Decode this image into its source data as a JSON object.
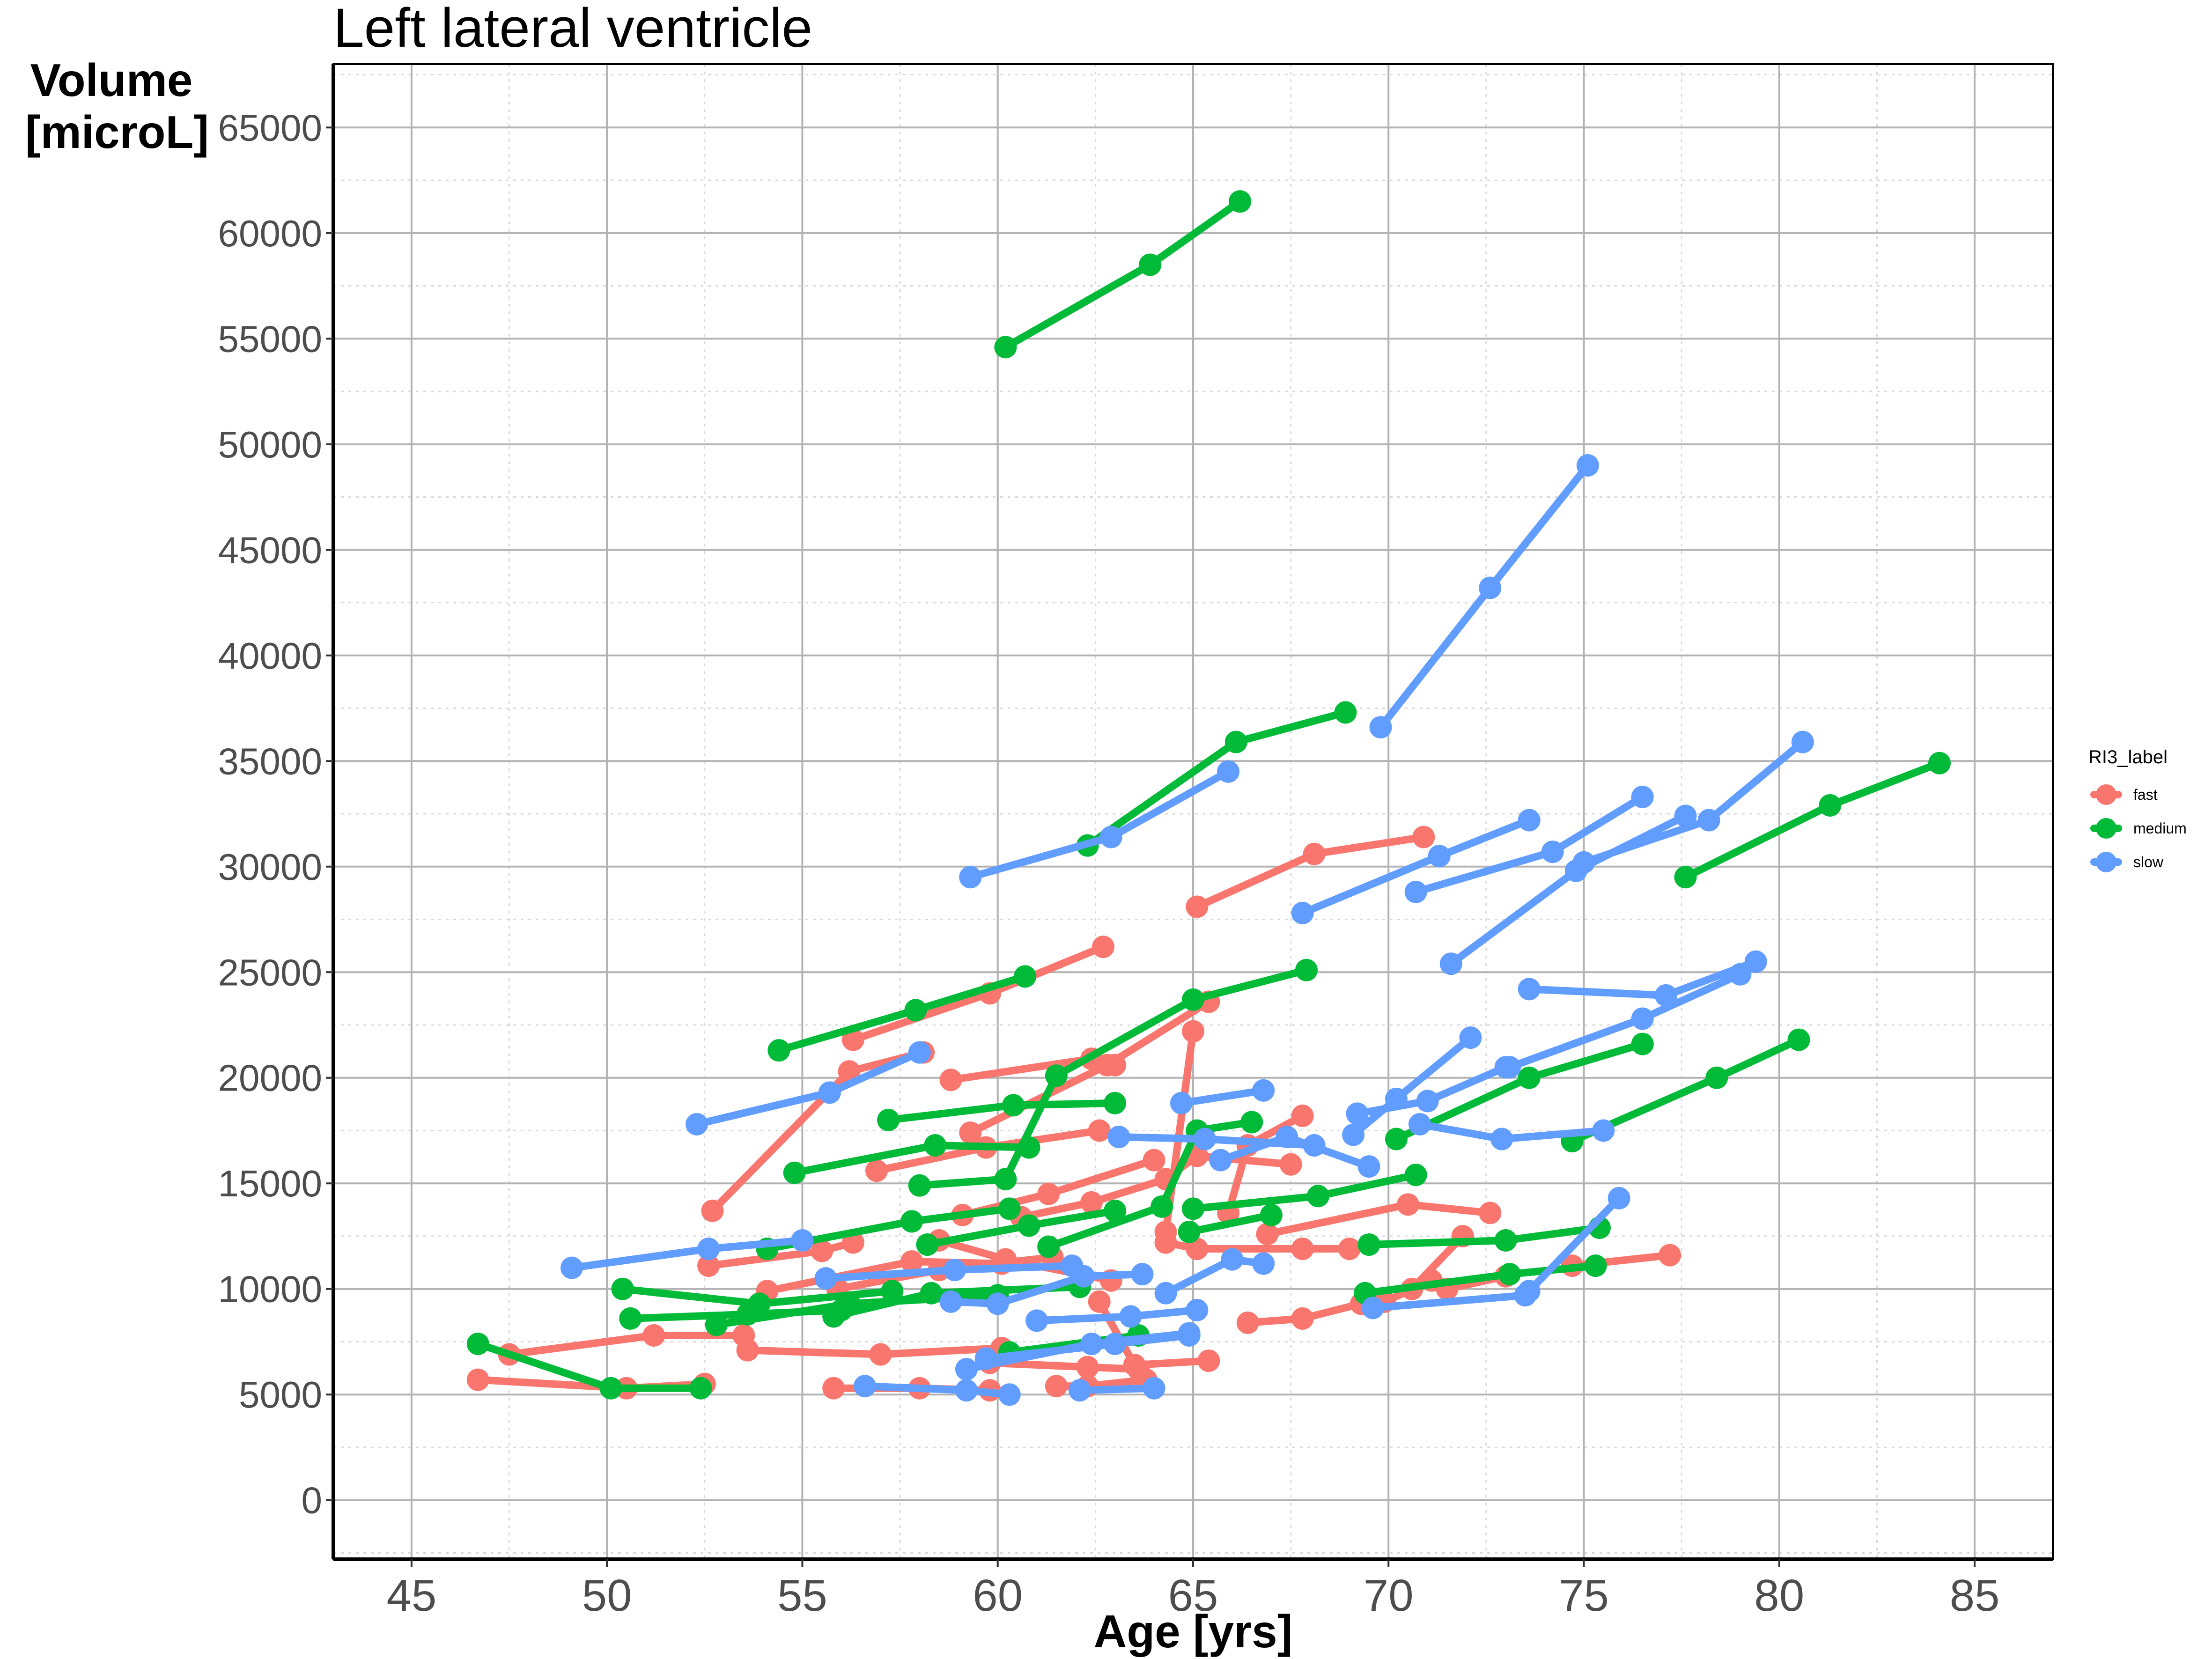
{
  "chart_data": {
    "type": "line",
    "title": "Left lateral ventricle",
    "ylabel_lines": [
      "Volume",
      "[microL]"
    ],
    "xlabel": "Age [yrs]",
    "xlim": [
      43,
      87
    ],
    "ylim": [
      -2800,
      68000
    ],
    "xticks": [
      45,
      50,
      55,
      60,
      65,
      70,
      75,
      80,
      85
    ],
    "yticks": [
      0,
      5000,
      10000,
      15000,
      20000,
      25000,
      30000,
      35000,
      40000,
      45000,
      50000,
      55000,
      60000,
      65000
    ],
    "grid": true,
    "legend": {
      "title": "RI3_label",
      "position": "right",
      "entries": [
        {
          "label": "fast",
          "color": "#F8766D"
        },
        {
          "label": "medium",
          "color": "#00BA38"
        },
        {
          "label": "slow",
          "color": "#619CFF"
        }
      ]
    },
    "series": [
      {
        "group": "fast",
        "points": [
          [
            46.7,
            5700
          ],
          [
            50.5,
            5300
          ],
          [
            52.5,
            5500
          ]
        ]
      },
      {
        "group": "fast",
        "points": [
          [
            47.5,
            6900
          ],
          [
            51.2,
            7800
          ],
          [
            53.5,
            7800
          ]
        ]
      },
      {
        "group": "fast",
        "points": [
          [
            52.6,
            11100
          ],
          [
            55.5,
            11800
          ],
          [
            56.3,
            12200
          ]
        ]
      },
      {
        "group": "fast",
        "points": [
          [
            52.7,
            13700
          ],
          [
            56.2,
            20300
          ],
          [
            58.1,
            21200
          ]
        ]
      },
      {
        "group": "fast",
        "points": [
          [
            53.6,
            7100
          ],
          [
            57.0,
            6900
          ],
          [
            60.1,
            7200
          ]
        ]
      },
      {
        "group": "fast",
        "points": [
          [
            54.1,
            9900
          ],
          [
            57.8,
            11300
          ],
          [
            60.1,
            11200
          ]
        ]
      },
      {
        "group": "fast",
        "points": [
          [
            55.8,
            5300
          ],
          [
            58.0,
            5300
          ],
          [
            59.8,
            5200
          ]
        ]
      },
      {
        "group": "fast",
        "points": [
          [
            55.9,
            10000
          ],
          [
            58.5,
            10900
          ],
          [
            61.4,
            11500
          ]
        ]
      },
      {
        "group": "fast",
        "points": [
          [
            56.3,
            21800
          ],
          [
            59.8,
            24000
          ],
          [
            62.7,
            26200
          ]
        ]
      },
      {
        "group": "fast",
        "points": [
          [
            56.9,
            15600
          ],
          [
            59.7,
            16700
          ],
          [
            62.6,
            17500
          ]
        ]
      },
      {
        "group": "fast",
        "points": [
          [
            58.5,
            12300
          ],
          [
            60.2,
            11400
          ],
          [
            62.9,
            10400
          ]
        ]
      },
      {
        "group": "fast",
        "points": [
          [
            58.8,
            19900
          ],
          [
            62.4,
            20900
          ],
          [
            63.0,
            20600
          ]
        ]
      },
      {
        "group": "fast",
        "points": [
          [
            59.1,
            13500
          ],
          [
            61.3,
            14500
          ],
          [
            64.0,
            16100
          ]
        ]
      },
      {
        "group": "fast",
        "points": [
          [
            59.3,
            17400
          ],
          [
            62.8,
            20600
          ],
          [
            65.4,
            23600
          ]
        ]
      },
      {
        "group": "fast",
        "points": [
          [
            59.8,
            6500
          ],
          [
            62.3,
            6300
          ],
          [
            63.6,
            6200
          ]
        ]
      },
      {
        "group": "fast",
        "points": [
          [
            60.6,
            13400
          ],
          [
            62.4,
            14100
          ],
          [
            64.3,
            15200
          ],
          [
            65.1,
            16300
          ],
          [
            67.5,
            15900
          ]
        ]
      },
      {
        "group": "fast",
        "points": [
          [
            61.5,
            5400
          ],
          [
            62.3,
            5400
          ],
          [
            63.8,
            5700
          ]
        ]
      },
      {
        "group": "fast",
        "points": [
          [
            62.6,
            9400
          ],
          [
            63.5,
            6400
          ],
          [
            65.4,
            6600
          ]
        ]
      },
      {
        "group": "fast",
        "points": [
          [
            64.3,
            12700
          ],
          [
            65.0,
            22200
          ]
        ]
      },
      {
        "group": "fast",
        "points": [
          [
            64.3,
            12200
          ],
          [
            65.1,
            11900
          ],
          [
            67.8,
            11900
          ],
          [
            69.0,
            11900
          ]
        ]
      },
      {
        "group": "fast",
        "points": [
          [
            65.1,
            28100
          ],
          [
            68.1,
            30600
          ],
          [
            70.9,
            31400
          ]
        ]
      },
      {
        "group": "fast",
        "points": [
          [
            65.9,
            13600
          ],
          [
            66.4,
            16800
          ],
          [
            67.8,
            18200
          ]
        ]
      },
      {
        "group": "fast",
        "points": [
          [
            66.4,
            8400
          ],
          [
            67.8,
            8600
          ],
          [
            69.3,
            9300
          ]
        ]
      },
      {
        "group": "fast",
        "points": [
          [
            66.9,
            12600
          ],
          [
            70.5,
            14000
          ],
          [
            72.6,
            13600
          ]
        ]
      },
      {
        "group": "fast",
        "points": [
          [
            69.9,
            9400
          ],
          [
            71.1,
            10400
          ],
          [
            71.5,
            10000
          ],
          [
            73.0,
            10600
          ]
        ]
      },
      {
        "group": "fast",
        "points": [
          [
            70.6,
            10000
          ],
          [
            71.9,
            12500
          ]
        ]
      },
      {
        "group": "fast",
        "points": [
          [
            74.7,
            11100
          ],
          [
            77.2,
            11600
          ]
        ]
      },
      {
        "group": "medium",
        "points": [
          [
            46.7,
            7400
          ],
          [
            50.1,
            5300
          ],
          [
            52.4,
            5300
          ]
        ]
      },
      {
        "group": "medium",
        "points": [
          [
            50.4,
            10000
          ],
          [
            53.9,
            9300
          ],
          [
            57.3,
            9900
          ]
        ]
      },
      {
        "group": "medium",
        "points": [
          [
            50.6,
            8600
          ],
          [
            53.6,
            8800
          ],
          [
            56.0,
            9000
          ]
        ]
      },
      {
        "group": "medium",
        "points": [
          [
            52.8,
            8300
          ],
          [
            56.2,
            9300
          ],
          [
            60.0,
            9700
          ]
        ]
      },
      {
        "group": "medium",
        "points": [
          [
            54.1,
            11900
          ],
          [
            57.8,
            13200
          ],
          [
            60.3,
            13800
          ]
        ]
      },
      {
        "group": "medium",
        "points": [
          [
            54.4,
            21300
          ],
          [
            57.9,
            23200
          ],
          [
            60.7,
            24800
          ]
        ]
      },
      {
        "group": "medium",
        "points": [
          [
            54.8,
            15500
          ],
          [
            58.4,
            16800
          ],
          [
            60.8,
            16700
          ]
        ]
      },
      {
        "group": "medium",
        "points": [
          [
            55.8,
            8700
          ],
          [
            58.3,
            9800
          ],
          [
            62.1,
            10100
          ]
        ]
      },
      {
        "group": "medium",
        "points": [
          [
            57.2,
            18000
          ],
          [
            60.4,
            18700
          ],
          [
            63.0,
            18800
          ]
        ]
      },
      {
        "group": "medium",
        "points": [
          [
            58.2,
            12100
          ],
          [
            60.8,
            13000
          ],
          [
            63.0,
            13700
          ]
        ]
      },
      {
        "group": "medium",
        "points": [
          [
            58.0,
            14900
          ],
          [
            60.2,
            15200
          ],
          [
            61.5,
            20100
          ],
          [
            65.0,
            23700
          ],
          [
            67.9,
            25100
          ]
        ]
      },
      {
        "group": "medium",
        "points": [
          [
            60.2,
            54600
          ],
          [
            63.9,
            58500
          ],
          [
            66.2,
            61500
          ]
        ]
      },
      {
        "group": "medium",
        "points": [
          [
            60.3,
            7000
          ],
          [
            63.6,
            7800
          ]
        ]
      },
      {
        "group": "medium",
        "points": [
          [
            61.3,
            12000
          ],
          [
            64.2,
            13900
          ],
          [
            65.1,
            17500
          ],
          [
            66.5,
            17900
          ]
        ]
      },
      {
        "group": "medium",
        "points": [
          [
            62.3,
            31000
          ],
          [
            66.1,
            35900
          ],
          [
            68.9,
            37300
          ]
        ]
      },
      {
        "group": "medium",
        "points": [
          [
            64.9,
            12700
          ],
          [
            67.0,
            13500
          ]
        ]
      },
      {
        "group": "medium",
        "points": [
          [
            65.0,
            13800
          ],
          [
            68.2,
            14400
          ],
          [
            70.7,
            15400
          ]
        ]
      },
      {
        "group": "medium",
        "points": [
          [
            69.4,
            9800
          ],
          [
            73.1,
            10700
          ],
          [
            75.3,
            11100
          ]
        ]
      },
      {
        "group": "medium",
        "points": [
          [
            69.5,
            12100
          ],
          [
            73.0,
            12300
          ],
          [
            75.4,
            12900
          ]
        ]
      },
      {
        "group": "medium",
        "points": [
          [
            70.2,
            17100
          ],
          [
            73.6,
            20000
          ],
          [
            76.5,
            21600
          ]
        ]
      },
      {
        "group": "medium",
        "points": [
          [
            74.7,
            17000
          ],
          [
            78.4,
            20000
          ],
          [
            80.5,
            21800
          ]
        ]
      },
      {
        "group": "medium",
        "points": [
          [
            77.6,
            29500
          ],
          [
            81.3,
            32900
          ],
          [
            84.1,
            34900
          ]
        ]
      },
      {
        "group": "slow",
        "points": [
          [
            49.1,
            11000
          ],
          [
            52.6,
            11900
          ],
          [
            55.0,
            12300
          ]
        ]
      },
      {
        "group": "slow",
        "points": [
          [
            52.3,
            17800
          ],
          [
            55.7,
            19300
          ],
          [
            58.0,
            21200
          ]
        ]
      },
      {
        "group": "slow",
        "points": [
          [
            55.6,
            10500
          ],
          [
            58.9,
            10900
          ],
          [
            61.9,
            11100
          ]
        ]
      },
      {
        "group": "slow",
        "points": [
          [
            56.6,
            5400
          ],
          [
            59.2,
            5200
          ],
          [
            60.3,
            5000
          ]
        ]
      },
      {
        "group": "slow",
        "points": [
          [
            58.8,
            9400
          ],
          [
            60.0,
            9300
          ],
          [
            62.2,
            10600
          ],
          [
            63.7,
            10700
          ]
        ]
      },
      {
        "group": "slow",
        "points": [
          [
            59.2,
            6200
          ],
          [
            62.4,
            7400
          ],
          [
            64.9,
            7900
          ]
        ]
      },
      {
        "group": "slow",
        "points": [
          [
            59.3,
            29500
          ],
          [
            62.9,
            31400
          ],
          [
            65.9,
            34500
          ]
        ]
      },
      {
        "group": "slow",
        "points": [
          [
            59.7,
            6700
          ],
          [
            63.0,
            7400
          ],
          [
            64.9,
            7800
          ]
        ]
      },
      {
        "group": "slow",
        "points": [
          [
            61.0,
            8500
          ],
          [
            63.4,
            8700
          ],
          [
            65.1,
            9000
          ]
        ]
      },
      {
        "group": "slow",
        "points": [
          [
            62.1,
            5200
          ],
          [
            64.0,
            5300
          ]
        ]
      },
      {
        "group": "slow",
        "points": [
          [
            63.1,
            17200
          ],
          [
            65.3,
            17100
          ],
          [
            68.1,
            16800
          ]
        ]
      },
      {
        "group": "slow",
        "points": [
          [
            64.3,
            9800
          ],
          [
            66.0,
            11400
          ],
          [
            66.8,
            11200
          ]
        ]
      },
      {
        "group": "slow",
        "points": [
          [
            64.7,
            18800
          ],
          [
            66.8,
            19400
          ]
        ]
      },
      {
        "group": "slow",
        "points": [
          [
            65.7,
            16100
          ],
          [
            67.4,
            17200
          ],
          [
            69.5,
            15800
          ]
        ]
      },
      {
        "group": "slow",
        "points": [
          [
            67.8,
            27800
          ],
          [
            71.3,
            30500
          ],
          [
            73.6,
            32200
          ]
        ]
      },
      {
        "group": "slow",
        "points": [
          [
            69.2,
            18300
          ],
          [
            71.0,
            18900
          ],
          [
            73.0,
            20500
          ]
        ]
      },
      {
        "group": "slow",
        "points": [
          [
            69.1,
            17300
          ],
          [
            70.2,
            19000
          ],
          [
            72.1,
            21900
          ]
        ]
      },
      {
        "group": "slow",
        "points": [
          [
            69.6,
            9100
          ],
          [
            73.5,
            9700
          ]
        ]
      },
      {
        "group": "slow",
        "points": [
          [
            69.8,
            36600
          ],
          [
            72.6,
            43200
          ],
          [
            75.1,
            49000
          ]
        ]
      },
      {
        "group": "slow",
        "points": [
          [
            70.7,
            28800
          ],
          [
            74.2,
            30700
          ],
          [
            76.5,
            33300
          ]
        ]
      },
      {
        "group": "slow",
        "points": [
          [
            70.8,
            17800
          ],
          [
            72.9,
            17100
          ],
          [
            75.5,
            17500
          ]
        ]
      },
      {
        "group": "slow",
        "points": [
          [
            71.6,
            25400
          ],
          [
            74.8,
            29800
          ],
          [
            77.6,
            32400
          ]
        ]
      },
      {
        "group": "slow",
        "points": [
          [
            73.1,
            20500
          ],
          [
            76.5,
            22800
          ],
          [
            79.0,
            24900
          ]
        ]
      },
      {
        "group": "slow",
        "points": [
          [
            73.6,
            24200
          ],
          [
            77.1,
            23900
          ],
          [
            79.4,
            25500
          ]
        ]
      },
      {
        "group": "slow",
        "points": [
          [
            73.6,
            9900
          ],
          [
            75.9,
            14300
          ]
        ]
      },
      {
        "group": "slow",
        "points": [
          [
            75.0,
            30200
          ],
          [
            78.2,
            32200
          ],
          [
            80.6,
            35900
          ]
        ]
      }
    ]
  }
}
